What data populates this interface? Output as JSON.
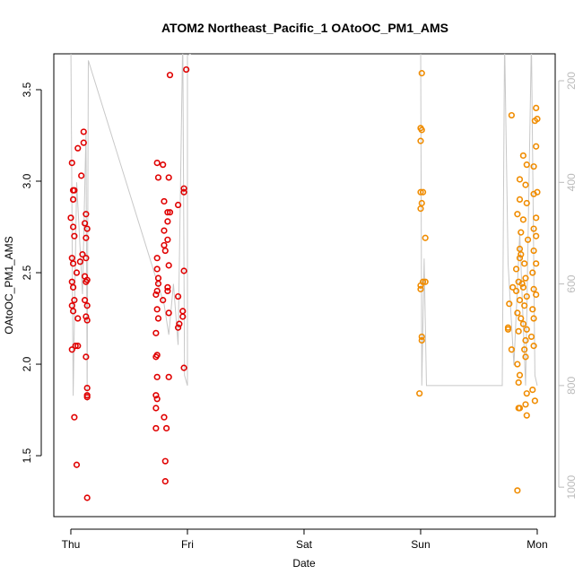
{
  "chart_data": {
    "type": "scatter",
    "title": "ATOM2 Northeast_Pacific_1 OAtoOC_PM1_AMS",
    "xlabel": "Date",
    "ylabel": "OAtoOC_PM1_AMS",
    "xlim": [
      -0.146,
      4.154
    ],
    "xticks": [
      {
        "value": 0,
        "label": "Thu"
      },
      {
        "value": 1,
        "label": "Fri"
      },
      {
        "value": 2,
        "label": "Sat"
      },
      {
        "value": 3,
        "label": "Sun"
      },
      {
        "value": 4,
        "label": "Mon"
      }
    ],
    "ylim": [
      1.167,
      3.696
    ],
    "yticks": [
      1.5,
      {
        "value": 2,
        "label": "2.0"
      },
      2.5,
      {
        "value": 3,
        "label": "3.0"
      },
      3.5
    ],
    "y2lim": [
      1058,
      147
    ],
    "y2ticks": [
      200,
      400,
      600,
      800,
      1000
    ],
    "y2color": "#bbbbbb",
    "series": [
      {
        "color": "#e00000",
        "x": [
          0.01,
          0.02,
          0.03,
          0.02,
          0.0,
          0.02,
          0.03,
          0.01,
          0.02,
          0.01,
          0.02,
          0.03,
          0.01,
          0.02,
          0.04,
          0.01,
          0.03,
          0.05,
          0.06,
          0.11,
          0.11,
          0.09,
          0.1,
          0.08,
          0.05,
          0.12,
          0.06,
          0.06,
          0.13,
          0.12,
          0.14,
          0.13,
          0.13,
          0.14,
          0.13,
          0.12,
          0.14,
          0.13,
          0.14,
          0.13,
          0.14,
          0.14,
          0.14,
          0.14,
          0.74,
          0.75,
          0.74,
          0.74,
          0.75,
          0.75,
          0.74,
          0.73,
          0.74,
          0.75,
          0.73,
          0.74,
          0.73,
          0.74,
          0.73,
          0.74,
          0.73,
          0.73,
          0.85,
          0.79,
          0.84,
          0.8,
          0.83,
          0.85,
          0.83,
          0.8,
          0.83,
          0.8,
          0.81,
          0.84,
          0.83,
          0.83,
          0.79,
          0.84,
          0.84,
          0.8,
          0.82,
          0.81,
          0.81,
          0.99,
          0.97,
          0.97,
          0.92,
          0.97,
          0.92,
          0.96,
          0.96,
          0.93,
          0.92,
          0.97
        ],
        "values": [
          3.1,
          2.95,
          2.95,
          2.9,
          2.8,
          2.75,
          2.7,
          2.58,
          2.55,
          2.45,
          2.42,
          2.35,
          2.32,
          2.29,
          2.1,
          2.08,
          1.71,
          1.45,
          3.18,
          3.27,
          3.21,
          3.03,
          2.6,
          2.56,
          2.5,
          2.48,
          2.25,
          2.1,
          2.82,
          2.77,
          2.74,
          2.69,
          2.58,
          2.46,
          2.45,
          2.35,
          2.32,
          2.26,
          2.24,
          2.04,
          1.87,
          1.83,
          1.82,
          1.27,
          3.1,
          3.02,
          2.58,
          2.52,
          2.47,
          2.44,
          2.4,
          2.38,
          2.3,
          2.25,
          2.17,
          2.05,
          2.04,
          1.93,
          1.83,
          1.81,
          1.76,
          1.65,
          3.58,
          3.09,
          3.02,
          2.89,
          2.83,
          2.83,
          2.78,
          2.73,
          2.68,
          2.65,
          2.62,
          2.54,
          2.42,
          2.4,
          2.35,
          2.28,
          1.93,
          1.71,
          1.65,
          1.47,
          1.36,
          3.61,
          2.96,
          2.94,
          2.87,
          2.51,
          2.37,
          2.29,
          2.26,
          2.22,
          2.2,
          1.98
        ]
      },
      {
        "color": "#f08c00",
        "x": [
          3.01,
          3.0,
          3.01,
          3.0,
          3.0,
          3.02,
          3.01,
          3.0,
          3.04,
          3.02,
          3.04,
          3.0,
          3.0,
          3.01,
          3.01,
          2.99,
          3.78,
          3.76,
          3.75,
          3.75,
          3.79,
          3.78,
          3.85,
          3.85,
          3.83,
          3.86,
          3.85,
          3.86,
          3.85,
          3.82,
          3.84,
          3.87,
          3.82,
          3.85,
          3.83,
          3.86,
          3.84,
          3.83,
          3.85,
          3.84,
          3.84,
          3.85,
          3.83,
          3.88,
          3.91,
          3.9,
          3.91,
          3.88,
          3.92,
          3.89,
          3.9,
          3.88,
          3.91,
          3.89,
          3.88,
          3.91,
          3.9,
          3.89,
          3.9,
          3.91,
          3.9,
          3.91,
          3.99,
          4.0,
          3.98,
          3.99,
          3.97,
          4.0,
          3.97,
          3.99,
          3.97,
          3.99,
          3.97,
          3.99,
          3.96,
          3.97,
          3.99,
          3.96,
          3.97,
          3.95,
          3.97,
          3.96,
          3.98
        ],
        "values": [
          3.59,
          3.29,
          3.28,
          3.22,
          2.94,
          2.94,
          2.88,
          2.85,
          2.69,
          2.45,
          2.45,
          2.43,
          2.41,
          2.15,
          2.13,
          1.84,
          3.36,
          2.33,
          2.2,
          2.19,
          2.42,
          2.08,
          3.01,
          2.9,
          2.82,
          2.72,
          2.63,
          2.6,
          2.58,
          2.52,
          2.45,
          2.44,
          2.4,
          2.35,
          2.28,
          2.25,
          2.18,
          2.0,
          1.94,
          1.9,
          1.76,
          1.76,
          1.31,
          3.14,
          3.09,
          2.98,
          2.88,
          2.79,
          2.68,
          2.55,
          2.47,
          2.42,
          2.37,
          2.32,
          2.22,
          2.19,
          2.13,
          2.08,
          2.04,
          1.84,
          1.78,
          1.72,
          3.4,
          3.34,
          3.33,
          3.19,
          3.08,
          2.94,
          2.93,
          2.8,
          2.74,
          2.7,
          2.62,
          2.55,
          2.5,
          2.41,
          2.38,
          2.3,
          2.25,
          2.15,
          2.1,
          1.86,
          1.8
        ]
      },
      {
        "color": "#c8c8c8",
        "axis": "y2",
        "style": "line",
        "x": [
          0,
          0.02,
          0.05,
          0.1,
          0.13,
          0.14,
          0.15,
          0.8,
          0.84,
          0.88,
          0.92,
          0.96,
          0.975,
          1.0,
          1.0,
          1.4,
          null,
          3.0,
          3.01,
          3.03,
          3.05,
          3.7,
          3.72,
          3.75,
          3.8,
          3.85,
          3.9,
          3.95,
          3.98,
          4.0
        ],
        "values": [
          120,
          820,
          400,
          620,
          300,
          830,
          160,
          640,
          700,
          600,
          720,
          110,
          780,
          800,
          150,
          100,
          null,
          120,
          800,
          550,
          800,
          800,
          120,
          560,
          760,
          500,
          800,
          120,
          780,
          800
        ]
      }
    ]
  }
}
